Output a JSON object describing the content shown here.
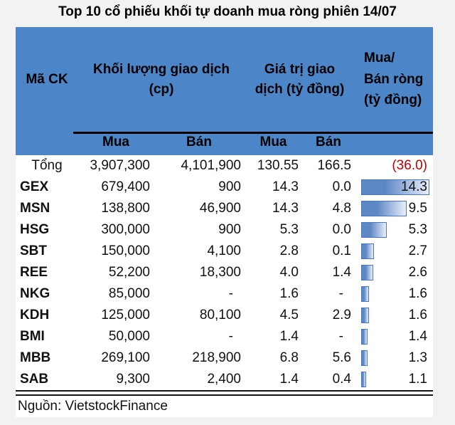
{
  "title": "Top 10 cổ phiếu khối tự doanh mua ròng phiên 14/07",
  "source": "Nguồn: VietstockFinance",
  "colors": {
    "page_bg": "#f2f2f2",
    "table_bg": "#ffffff",
    "header_blue": "#4d86c8",
    "text": "#111111",
    "negative_red": "#c00000",
    "bar_border": "#4a77b9",
    "bar_fill_left": "#5d87c5",
    "bar_fill_right": "#e9effa"
  },
  "table": {
    "header": {
      "code": "Mã CK",
      "volume_lines": [
        "Khối lượng giao dịch",
        "(cp)"
      ],
      "value_lines": [
        "Giá trị giao",
        "dịch (tỷ đồng)"
      ],
      "net_lines": [
        "Mua/",
        "Bán ròng",
        "(tỷ đồng)"
      ]
    },
    "subheaders": [
      "Mua",
      "Bán",
      "Mua",
      "Bán"
    ],
    "total": {
      "label": "Tổng",
      "vol_buy": "3,907,300",
      "vol_sell": "4,101,900",
      "val_buy": "130.55",
      "val_sell": "166.5",
      "net": "(36.0)"
    },
    "net_bar_max": 14.3,
    "rows": [
      {
        "code": "GEX",
        "vol_buy": "679,400",
        "vol_sell": "900",
        "val_buy": "14.3",
        "val_sell": "0.0",
        "net": "14.3",
        "net_value": 14.3
      },
      {
        "code": "MSN",
        "vol_buy": "138,800",
        "vol_sell": "46,900",
        "val_buy": "14.3",
        "val_sell": "4.8",
        "net": "9.5",
        "net_value": 9.5
      },
      {
        "code": "HSG",
        "vol_buy": "300,000",
        "vol_sell": "900",
        "val_buy": "5.3",
        "val_sell": "0.0",
        "net": "5.3",
        "net_value": 5.3
      },
      {
        "code": "SBT",
        "vol_buy": "150,000",
        "vol_sell": "4,100",
        "val_buy": "2.8",
        "val_sell": "0.1",
        "net": "2.7",
        "net_value": 2.7
      },
      {
        "code": "REE",
        "vol_buy": "52,200",
        "vol_sell": "18,300",
        "val_buy": "4.0",
        "val_sell": "1.4",
        "net": "2.6",
        "net_value": 2.6
      },
      {
        "code": "NKG",
        "vol_buy": "85,000",
        "vol_sell": "-",
        "val_buy": "1.6",
        "val_sell": "-",
        "net": "1.6",
        "net_value": 1.6
      },
      {
        "code": "KDH",
        "vol_buy": "125,000",
        "vol_sell": "80,100",
        "val_buy": "4.5",
        "val_sell": "2.9",
        "net": "1.6",
        "net_value": 1.6
      },
      {
        "code": "BMI",
        "vol_buy": "50,000",
        "vol_sell": "-",
        "val_buy": "1.4",
        "val_sell": "-",
        "net": "1.4",
        "net_value": 1.4
      },
      {
        "code": "MBB",
        "vol_buy": "269,100",
        "vol_sell": "218,900",
        "val_buy": "6.8",
        "val_sell": "5.6",
        "net": "1.3",
        "net_value": 1.3
      },
      {
        "code": "SAB",
        "vol_buy": "9,300",
        "vol_sell": "2,400",
        "val_buy": "1.4",
        "val_sell": "0.4",
        "net": "1.1",
        "net_value": 1.1
      }
    ]
  },
  "chart_data": {
    "type": "table",
    "title": "Top 10 cổ phiếu khối tự doanh mua ròng phiên 14/07",
    "source": "Nguồn: VietstockFinance",
    "column_groups": [
      "Mã CK",
      "Khối lượng giao dịch (cp)",
      "Giá trị giao dịch (tỷ đồng)",
      "Mua/Bán ròng (tỷ đồng)"
    ],
    "columns": [
      "Mã CK",
      "Khối lượng giao dịch Mua (cp)",
      "Khối lượng giao dịch Bán (cp)",
      "Giá trị giao dịch Mua (tỷ đồng)",
      "Giá trị giao dịch Bán (tỷ đồng)",
      "Mua/Bán ròng (tỷ đồng)"
    ],
    "total_row": [
      "Tổng",
      3907300,
      4101900,
      130.55,
      166.5,
      -36.0
    ],
    "rows": [
      [
        "GEX",
        679400,
        900,
        14.3,
        0.0,
        14.3
      ],
      [
        "MSN",
        138800,
        46900,
        14.3,
        4.8,
        9.5
      ],
      [
        "HSG",
        300000,
        900,
        5.3,
        0.0,
        5.3
      ],
      [
        "SBT",
        150000,
        4100,
        2.8,
        0.1,
        2.7
      ],
      [
        "REE",
        52200,
        18300,
        4.0,
        1.4,
        2.6
      ],
      [
        "NKG",
        85000,
        null,
        1.6,
        null,
        1.6
      ],
      [
        "KDH",
        125000,
        80100,
        4.5,
        2.9,
        1.6
      ],
      [
        "BMI",
        50000,
        null,
        1.4,
        null,
        1.4
      ],
      [
        "MBB",
        269100,
        218900,
        6.8,
        5.6,
        1.3
      ],
      [
        "SAB",
        9300,
        2400,
        1.4,
        0.4,
        1.1
      ]
    ],
    "embedded_bar": {
      "type": "bar",
      "orientation": "horizontal",
      "column": "Mua/Bán ròng (tỷ đồng)",
      "categories": [
        "GEX",
        "MSN",
        "HSG",
        "SBT",
        "REE",
        "NKG",
        "KDH",
        "BMI",
        "MBB",
        "SAB"
      ],
      "values": [
        14.3,
        9.5,
        5.3,
        2.7,
        2.6,
        1.6,
        1.6,
        1.4,
        1.3,
        1.1
      ],
      "xlim": [
        0,
        14.3
      ],
      "legend_position": "none",
      "grid": false
    }
  }
}
